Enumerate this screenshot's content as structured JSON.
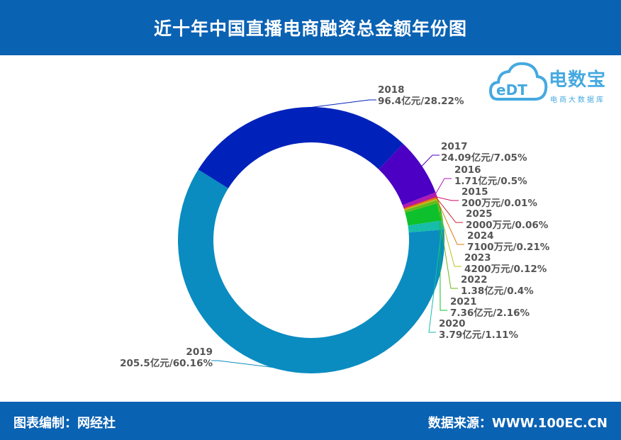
{
  "header": {
    "title": "近十年中国直播电商融资总金额年份图"
  },
  "logo": {
    "text": "电数宝",
    "subtitle": "电商大数据库",
    "mark": "eDT"
  },
  "footer": {
    "left": "图表编制：网经社",
    "right": "数据来源：WWW.100EC.CN"
  },
  "chart_data": {
    "type": "pie",
    "donut": true,
    "slices": [
      {
        "year": "2018",
        "value_label": "96.4亿元/28.22%",
        "percent": 28.22,
        "color": "#0022bb"
      },
      {
        "year": "2017",
        "value_label": "24.09亿元/7.05%",
        "percent": 7.05,
        "color": "#4b00c4"
      },
      {
        "year": "2016",
        "value_label": "1.71亿元/0.5%",
        "percent": 0.5,
        "color": "#b01ab0"
      },
      {
        "year": "2015",
        "value_label": "200万元/0.01%",
        "percent": 0.01,
        "color": "#cc0066"
      },
      {
        "year": "2025",
        "value_label": "2000万元/0.06%",
        "percent": 0.06,
        "color": "#cc2233"
      },
      {
        "year": "2024",
        "value_label": "7100万元/0.21%",
        "percent": 0.21,
        "color": "#e07b10"
      },
      {
        "year": "2023",
        "value_label": "4200万元/0.12%",
        "percent": 0.12,
        "color": "#bcc21a"
      },
      {
        "year": "2022",
        "value_label": "1.38亿元/0.4%",
        "percent": 0.4,
        "color": "#6ab81a"
      },
      {
        "year": "2021",
        "value_label": "7.36亿元/2.16%",
        "percent": 2.16,
        "color": "#0ec02c"
      },
      {
        "year": "2020",
        "value_label": "3.79亿元/1.11%",
        "percent": 1.11,
        "color": "#16bdaa"
      },
      {
        "year": "2019",
        "value_label": "205.5亿元/60.16%",
        "percent": 60.16,
        "color": "#0a8cc0"
      }
    ]
  }
}
